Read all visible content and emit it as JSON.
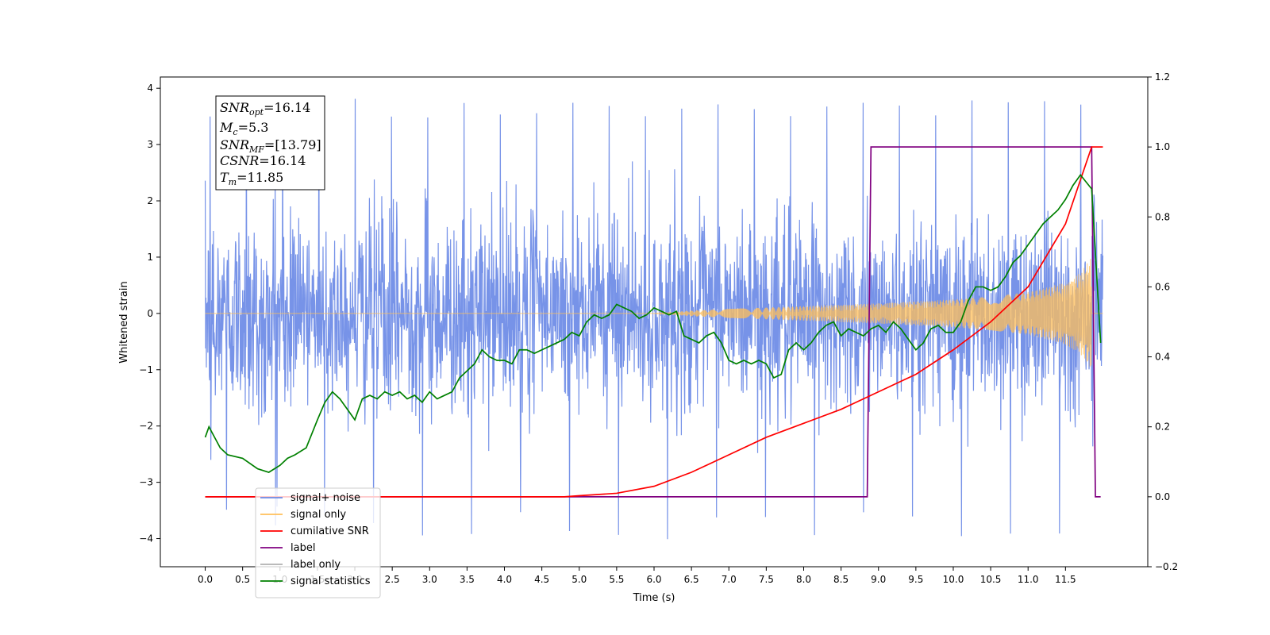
{
  "chart_data": {
    "type": "line",
    "xlabel": "Time (s)",
    "ylabel_left": "Whitened strain",
    "xlim": [
      -0.6,
      12.6
    ],
    "ylim_left": [
      -4.5,
      4.2
    ],
    "ylim_right": [
      -0.2,
      1.2
    ],
    "xticks": [
      "0.0",
      "0.5",
      "1.0",
      "1.5",
      "2.0",
      "2.5",
      "3.0",
      "3.5",
      "4.0",
      "4.5",
      "5.0",
      "5.5",
      "6.0",
      "6.5",
      "7.0",
      "7.5",
      "8.0",
      "8.5",
      "9.0",
      "9.5",
      "10.0",
      "10.5",
      "11.0",
      "11.5"
    ],
    "yticks_left": [
      "4",
      "3",
      "2",
      "1",
      "0",
      "−1",
      "−2",
      "−3",
      "−4"
    ],
    "yticks_right": [
      "1.2",
      "1.0",
      "0.8",
      "0.6",
      "0.4",
      "0.2",
      "0.0",
      "−0.2"
    ],
    "legend_position": "lower-left",
    "legend": [
      {
        "label": "signal+ noise",
        "color": "#6b8ae6"
      },
      {
        "label": "signal only",
        "color": "#ffbf5a"
      },
      {
        "label": "cumilative SNR",
        "color": "#ff0000"
      },
      {
        "label": "label",
        "color": "#800080"
      },
      {
        "label": "label only",
        "color": "#b0b0b0"
      },
      {
        "label": "signal statistics",
        "color": "#008000"
      }
    ],
    "annotation": {
      "snr_opt": {
        "sym": "SNR",
        "sub": "opt",
        "val": "=16.14"
      },
      "mc": {
        "sym": "M",
        "sub": "c",
        "val": "=5.3"
      },
      "snr_mf": {
        "sym": "SNR",
        "sub": "MF",
        "val": "=[13.79]"
      },
      "csnr": {
        "sym": "CSNR",
        "val": "=16.14"
      },
      "tm": {
        "sym": "T",
        "sub": "m",
        "val": "=11.85"
      }
    },
    "series": [
      {
        "name": "signal+ noise",
        "axis": "left",
        "color": "#6b8ae6",
        "x_range": [
          0.0,
          12.0
        ],
        "approx_std": 0.85,
        "note_peaks": {
          "max": 3.85,
          "min": -4.1
        }
      },
      {
        "name": "signal only",
        "axis": "left",
        "color": "#ffbf5a",
        "envelope_x": [
          0.0,
          6.0,
          6.5,
          7.0,
          8.0,
          9.0,
          10.0,
          10.5,
          11.0,
          11.5,
          11.7,
          11.85
        ],
        "envelope_amp": [
          0.0,
          0.0,
          0.05,
          0.08,
          0.13,
          0.18,
          0.25,
          0.3,
          0.38,
          0.55,
          0.72,
          1.0
        ]
      },
      {
        "name": "cumilative SNR",
        "axis": "right",
        "color": "#ff0000",
        "x": [
          0.0,
          4.8,
          5.0,
          5.5,
          6.0,
          6.5,
          7.0,
          7.5,
          8.0,
          8.5,
          9.0,
          9.5,
          10.0,
          10.5,
          11.0,
          11.5,
          11.85,
          12.0
        ],
        "values": [
          0.0,
          0.0,
          0.003,
          0.01,
          0.03,
          0.07,
          0.12,
          0.17,
          0.21,
          0.25,
          0.3,
          0.35,
          0.42,
          0.5,
          0.6,
          0.78,
          1.0,
          1.0
        ]
      },
      {
        "name": "label",
        "axis": "right",
        "color": "#800080",
        "x": [
          0.0,
          8.85,
          8.9,
          11.85,
          11.9,
          11.97
        ],
        "values": [
          0.0,
          0.0,
          1.0,
          1.0,
          0.0,
          0.0
        ]
      },
      {
        "name": "signal statistics",
        "axis": "right",
        "color": "#008000",
        "x": [
          0.0,
          0.05,
          0.1,
          0.2,
          0.3,
          0.5,
          0.7,
          0.85,
          1.0,
          1.1,
          1.2,
          1.35,
          1.5,
          1.6,
          1.7,
          1.8,
          1.9,
          2.0,
          2.1,
          2.2,
          2.3,
          2.4,
          2.5,
          2.6,
          2.7,
          2.8,
          2.9,
          3.0,
          3.1,
          3.2,
          3.3,
          3.4,
          3.5,
          3.6,
          3.7,
          3.8,
          3.9,
          4.0,
          4.1,
          4.2,
          4.3,
          4.4,
          4.5,
          4.6,
          4.7,
          4.8,
          4.9,
          5.0,
          5.1,
          5.2,
          5.3,
          5.4,
          5.5,
          5.6,
          5.7,
          5.8,
          5.9,
          6.0,
          6.1,
          6.2,
          6.3,
          6.4,
          6.5,
          6.6,
          6.7,
          6.8,
          6.9,
          7.0,
          7.1,
          7.2,
          7.3,
          7.4,
          7.5,
          7.6,
          7.7,
          7.8,
          7.9,
          8.0,
          8.1,
          8.2,
          8.3,
          8.4,
          8.5,
          8.6,
          8.7,
          8.8,
          8.9,
          9.0,
          9.1,
          9.2,
          9.3,
          9.4,
          9.5,
          9.6,
          9.7,
          9.8,
          9.9,
          10.0,
          10.1,
          10.2,
          10.3,
          10.4,
          10.5,
          10.6,
          10.7,
          10.8,
          10.9,
          11.0,
          11.1,
          11.2,
          11.3,
          11.4,
          11.5,
          11.6,
          11.7,
          11.85,
          11.97
        ],
        "values": [
          0.17,
          0.2,
          0.18,
          0.14,
          0.12,
          0.11,
          0.08,
          0.07,
          0.09,
          0.11,
          0.12,
          0.14,
          0.22,
          0.27,
          0.3,
          0.28,
          0.25,
          0.22,
          0.28,
          0.29,
          0.28,
          0.3,
          0.29,
          0.3,
          0.28,
          0.29,
          0.27,
          0.3,
          0.28,
          0.29,
          0.3,
          0.34,
          0.36,
          0.38,
          0.42,
          0.4,
          0.39,
          0.39,
          0.38,
          0.42,
          0.42,
          0.41,
          0.42,
          0.43,
          0.44,
          0.45,
          0.47,
          0.46,
          0.5,
          0.52,
          0.51,
          0.52,
          0.55,
          0.54,
          0.53,
          0.51,
          0.52,
          0.54,
          0.53,
          0.52,
          0.53,
          0.46,
          0.45,
          0.44,
          0.46,
          0.47,
          0.44,
          0.39,
          0.38,
          0.39,
          0.38,
          0.39,
          0.38,
          0.34,
          0.35,
          0.42,
          0.44,
          0.42,
          0.44,
          0.47,
          0.49,
          0.5,
          0.46,
          0.48,
          0.47,
          0.46,
          0.48,
          0.49,
          0.47,
          0.5,
          0.48,
          0.45,
          0.42,
          0.44,
          0.48,
          0.49,
          0.47,
          0.47,
          0.5,
          0.56,
          0.6,
          0.6,
          0.59,
          0.6,
          0.63,
          0.67,
          0.69,
          0.72,
          0.75,
          0.78,
          0.8,
          0.82,
          0.85,
          0.89,
          0.92,
          0.88,
          0.44
        ]
      }
    ]
  }
}
